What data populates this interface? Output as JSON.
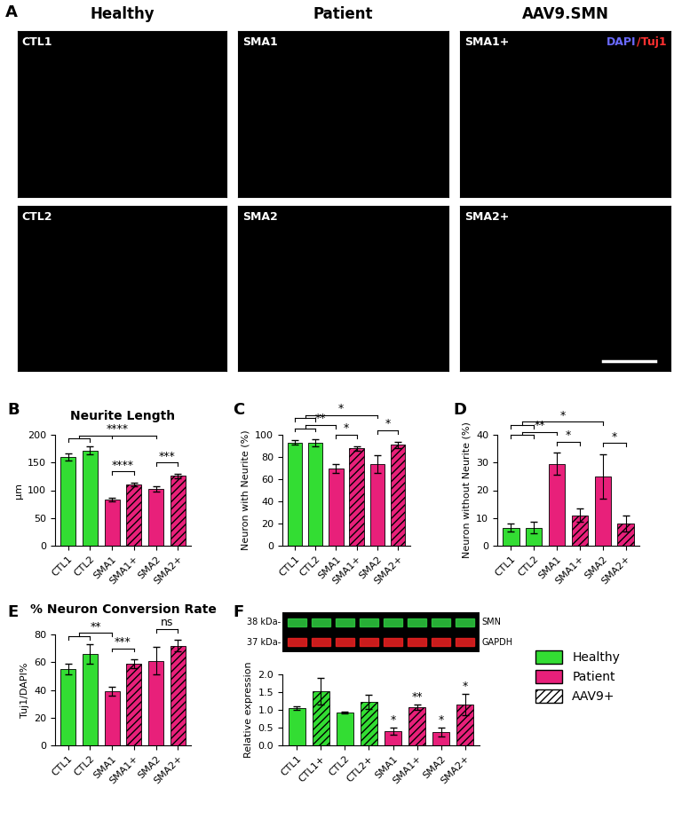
{
  "panel_a": {
    "label": "A",
    "columns": [
      "Healthy",
      "Patient",
      "AAV9.SMN"
    ],
    "images": [
      [
        "CTL1",
        "SMA1",
        "SMA1+"
      ],
      [
        "CTL2",
        "SMA2",
        "SMA2+"
      ]
    ],
    "stain": [
      {
        "text": "DAPI",
        "color": "#6a6aff"
      },
      {
        "text": "/Tuj1",
        "color": "#ff3030"
      }
    ]
  },
  "key": [
    {
      "name": "Healthy",
      "color": "#33dd33"
    },
    {
      "name": "Patient",
      "color": "#e8207a"
    },
    {
      "name": "AAV9+",
      "color": "#ffffff"
    }
  ],
  "chart_data": [
    {
      "type": "bar",
      "panel": "B",
      "title": "Neurite Length",
      "ylabel": "µm",
      "categories": [
        "CTL1",
        "CTL2",
        "SMA1",
        "SMA1+",
        "SMA2",
        "SMA2+"
      ],
      "values": [
        160,
        172,
        83,
        111,
        102,
        126
      ],
      "errors": [
        6,
        7,
        3,
        3,
        5,
        4
      ],
      "colors": [
        "#33dd33",
        "#33dd33",
        "#e8207a",
        "#e8207a",
        "#e8207a",
        "#e8207a"
      ],
      "ylim": [
        0,
        200
      ],
      "yticks": [
        0,
        50,
        100,
        150,
        200
      ],
      "comparisons": [
        {
          "text": "****",
          "left": [
            "SMA1"
          ],
          "right": [
            "SMA1+"
          ]
        },
        {
          "text": "***",
          "left": [
            "SMA2"
          ],
          "right": [
            "SMA2+"
          ]
        },
        {
          "text": "****",
          "left": [
            "CTL1",
            "CTL2"
          ],
          "right": [
            "SMA1",
            "SMA2"
          ]
        }
      ]
    },
    {
      "type": "bar",
      "panel": "C",
      "ylabel": "Neuron with Neurite (%)",
      "categories": [
        "CTL1",
        "CTL2",
        "SMA1",
        "SMA1+",
        "SMA2",
        "SMA2+"
      ],
      "values": [
        93,
        93,
        70,
        88,
        74,
        91
      ],
      "errors": [
        2,
        3,
        4,
        2,
        8,
        3
      ],
      "colors": [
        "#33dd33",
        "#33dd33",
        "#e8207a",
        "#e8207a",
        "#e8207a",
        "#e8207a"
      ],
      "ylim": [
        0,
        100
      ],
      "yticks": [
        0,
        20,
        40,
        60,
        80,
        100
      ],
      "comparisons": [
        {
          "text": "*",
          "left": [
            "SMA1"
          ],
          "right": [
            "SMA1+"
          ]
        },
        {
          "text": "*",
          "left": [
            "SMA2"
          ],
          "right": [
            "SMA2+"
          ]
        },
        {
          "text": "**",
          "left": [
            "CTL1",
            "CTL2"
          ],
          "right": [
            "SMA1"
          ]
        },
        {
          "text": "*",
          "left": [
            "CTL1",
            "CTL2"
          ],
          "right": [
            "SMA2"
          ]
        }
      ]
    },
    {
      "type": "bar",
      "panel": "D",
      "ylabel": "Neuron without Neurite (%)",
      "categories": [
        "CTL1",
        "CTL2",
        "SMA1",
        "SMA1+",
        "SMA2",
        "SMA2+"
      ],
      "values": [
        6.5,
        6.5,
        29.5,
        11,
        25,
        8
      ],
      "errors": [
        1.5,
        2,
        4,
        2.5,
        8,
        3
      ],
      "colors": [
        "#33dd33",
        "#33dd33",
        "#e8207a",
        "#e8207a",
        "#e8207a",
        "#e8207a"
      ],
      "ylim": [
        0,
        40
      ],
      "yticks": [
        0,
        10,
        20,
        30,
        40
      ],
      "comparisons": [
        {
          "text": "*",
          "left": [
            "SMA1"
          ],
          "right": [
            "SMA1+"
          ]
        },
        {
          "text": "*",
          "left": [
            "SMA2"
          ],
          "right": [
            "SMA2+"
          ]
        },
        {
          "text": "**",
          "left": [
            "CTL1",
            "CTL2"
          ],
          "right": [
            "SMA1"
          ]
        },
        {
          "text": "*",
          "left": [
            "CTL1",
            "CTL2"
          ],
          "right": [
            "SMA2"
          ]
        }
      ]
    },
    {
      "type": "bar",
      "panel": "E",
      "title": "% Neuron Conversion Rate",
      "ylabel": "Tuj1/DAPI%",
      "categories": [
        "CTL1",
        "CTL2",
        "SMA1",
        "SMA1+",
        "SMA2",
        "SMA2+"
      ],
      "values": [
        55,
        66,
        39,
        59,
        61,
        72
      ],
      "errors": [
        4,
        7,
        3,
        3,
        10,
        4
      ],
      "colors": [
        "#33dd33",
        "#33dd33",
        "#e8207a",
        "#e8207a",
        "#e8207a",
        "#e8207a"
      ],
      "ylim": [
        0,
        80
      ],
      "yticks": [
        0,
        20,
        40,
        60,
        80
      ],
      "comparisons": [
        {
          "text": "***",
          "left": [
            "SMA1"
          ],
          "right": [
            "SMA1+"
          ]
        },
        {
          "text": "ns",
          "left": [
            "SMA2"
          ],
          "right": [
            "SMA2+"
          ]
        },
        {
          "text": "**",
          "left": [
            "CTL1",
            "CTL2"
          ],
          "right": [
            "SMA1"
          ]
        }
      ]
    },
    {
      "type": "bar",
      "panel": "F",
      "ylabel": "Relative expression",
      "categories": [
        "CTL1",
        "CTL1+",
        "CTL2",
        "CTL2+",
        "SMA1",
        "SMA1+",
        "SMA2",
        "SMA2+"
      ],
      "values": [
        1.05,
        1.52,
        0.93,
        1.23,
        0.4,
        1.08,
        0.38,
        1.15
      ],
      "errors": [
        0.05,
        0.38,
        0.03,
        0.2,
        0.1,
        0.08,
        0.12,
        0.3
      ],
      "colors": [
        "#33dd33",
        "#33dd33",
        "#33dd33",
        "#33dd33",
        "#e8207a",
        "#e8207a",
        "#e8207a",
        "#e8207a"
      ],
      "ylim": [
        0.0,
        2.0
      ],
      "yticks": [
        0.0,
        0.5,
        1.0,
        1.5,
        2.0
      ],
      "significance": [
        null,
        null,
        null,
        null,
        "*",
        "**",
        "*",
        "*"
      ],
      "blot": {
        "rows": [
          {
            "size": "38 kDa-",
            "protein": "SMN",
            "color": "#2ecc40"
          },
          {
            "size": "37 kDa-",
            "protein": "GAPDH",
            "color": "#ee2222"
          }
        ]
      }
    }
  ]
}
